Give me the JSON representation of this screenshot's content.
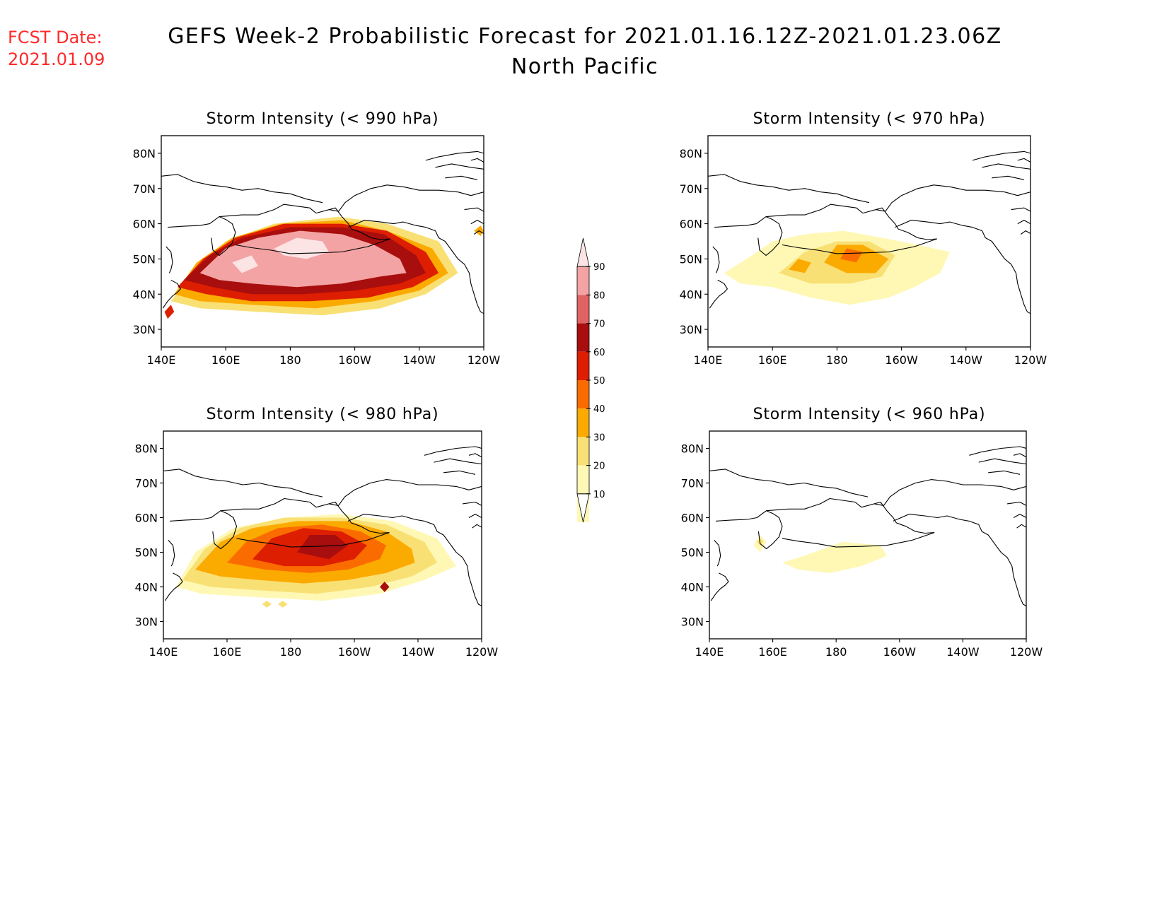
{
  "header": {
    "fcst_label": "FCST Date:",
    "fcst_date": "2021.01.09",
    "title_line1": "GEFS Week-2 Probabilistic Forecast for 2021.01.16.12Z-2021.01.23.06Z",
    "title_line2": "North Pacific"
  },
  "map_axes": {
    "lon_ticks": [
      "140E",
      "160E",
      "180",
      "160W",
      "140W",
      "120W"
    ],
    "lat_ticks": [
      "80N",
      "70N",
      "60N",
      "50N",
      "40N",
      "30N"
    ]
  },
  "colorbar": {
    "labels": [
      "90",
      "80",
      "70",
      "60",
      "50",
      "40",
      "30",
      "20",
      "10"
    ],
    "colors": [
      "#fce4e4",
      "#f3a3a3",
      "#e06363",
      "#a80e0e",
      "#dd1e00",
      "#fb6c00",
      "#fbaa00",
      "#f9e074",
      "#fef8b4"
    ]
  },
  "panels": [
    {
      "id": "p990",
      "title": "Storm Intensity (< 990 hPa)",
      "blobs": [
        {
          "level": 2,
          "pts": [
            [
              143,
              38
            ],
            [
              150,
              47
            ],
            [
              160,
              55
            ],
            [
              175,
              60
            ],
            [
              195,
              62
            ],
            [
              210,
              60
            ],
            [
              226,
              55
            ],
            [
              232,
              46
            ],
            [
              222,
              40
            ],
            [
              208,
              36
            ],
            [
              190,
              34
            ],
            [
              170,
              35
            ],
            [
              152,
              36
            ]
          ]
        },
        {
          "level": 3,
          "pts": [
            [
              144,
              40
            ],
            [
              151,
              49
            ],
            [
              162,
              56
            ],
            [
              177,
              60
            ],
            [
              196,
              61
            ],
            [
              210,
              58
            ],
            [
              224,
              53
            ],
            [
              229,
              46
            ],
            [
              220,
              41
            ],
            [
              206,
              38
            ],
            [
              188,
              36
            ],
            [
              168,
              37
            ],
            [
              152,
              38
            ]
          ]
        },
        {
          "level": 5,
          "pts": [
            [
              145,
              42
            ],
            [
              153,
              50
            ],
            [
              163,
              56
            ],
            [
              178,
              60
            ],
            [
              196,
              60
            ],
            [
              210,
              58
            ],
            [
              222,
              52
            ],
            [
              226,
              46
            ],
            [
              218,
              42
            ],
            [
              204,
              39
            ],
            [
              186,
              38
            ],
            [
              168,
              38
            ],
            [
              154,
              40
            ]
          ]
        },
        {
          "level": 6,
          "pts": [
            [
              147,
              44
            ],
            [
              155,
              51
            ],
            [
              165,
              56
            ],
            [
              180,
              59
            ],
            [
              196,
              59
            ],
            [
              209,
              57
            ],
            [
              219,
              51
            ],
            [
              222,
              46
            ],
            [
              214,
              43
            ],
            [
              200,
              41
            ],
            [
              184,
              40
            ],
            [
              168,
              40
            ],
            [
              156,
              42
            ]
          ]
        },
        {
          "level": 8,
          "pts": [
            [
              152,
              46
            ],
            [
              160,
              53
            ],
            [
              170,
              56
            ],
            [
              183,
              58
            ],
            [
              196,
              57
            ],
            [
              206,
              54
            ],
            [
              214,
              50
            ],
            [
              216,
              46
            ],
            [
              208,
              45
            ],
            [
              196,
              43
            ],
            [
              182,
              42
            ],
            [
              168,
              43
            ],
            [
              158,
              44
            ]
          ]
        },
        {
          "level": 9,
          "pts": [
            [
              175,
              53
            ],
            [
              182,
              56
            ],
            [
              190,
              55
            ],
            [
              192,
              52
            ],
            [
              185,
              50
            ],
            [
              178,
              51
            ]
          ]
        },
        {
          "level": 9,
          "pts": [
            [
              162,
              49
            ],
            [
              168,
              51
            ],
            [
              170,
              48
            ],
            [
              165,
              46
            ]
          ]
        },
        {
          "level": 3,
          "pts": [
            [
              237,
              58
            ],
            [
              239,
              59.5
            ],
            [
              240,
              58
            ],
            [
              239,
              56.5
            ]
          ]
        },
        {
          "level": 5,
          "pts": [
            [
              141,
              35
            ],
            [
              143,
              37
            ],
            [
              144,
              35
            ],
            [
              142,
              33
            ]
          ]
        }
      ]
    },
    {
      "id": "p970",
      "title": "Storm Intensity (< 970 hPa)",
      "blobs": [
        {
          "level": 1,
          "pts": [
            [
              145,
              46
            ],
            [
              152,
              50
            ],
            [
              160,
              55
            ],
            [
              170,
              57
            ],
            [
              182,
              58
            ],
            [
              194,
              56
            ],
            [
              205,
              54
            ],
            [
              215,
              52
            ],
            [
              212,
              46
            ],
            [
              204,
              42
            ],
            [
              196,
              39
            ],
            [
              184,
              37
            ],
            [
              172,
              39
            ],
            [
              160,
              42
            ],
            [
              150,
              43
            ]
          ]
        },
        {
          "level": 2,
          "pts": [
            [
              162,
              46
            ],
            [
              170,
              52
            ],
            [
              180,
              55
            ],
            [
              190,
              55
            ],
            [
              198,
              51
            ],
            [
              194,
              45
            ],
            [
              184,
              43
            ],
            [
              172,
              43
            ]
          ]
        },
        {
          "level": 3,
          "pts": [
            [
              165,
              47
            ],
            [
              168,
              50
            ],
            [
              172,
              49
            ],
            [
              170,
              46
            ]
          ]
        },
        {
          "level": 3,
          "pts": [
            [
              176,
              49
            ],
            [
              180,
              54
            ],
            [
              188,
              54
            ],
            [
              196,
              50
            ],
            [
              192,
              46
            ],
            [
              183,
              46
            ]
          ]
        },
        {
          "level": 4,
          "pts": [
            [
              181,
              50
            ],
            [
              183,
              53
            ],
            [
              188,
              52
            ],
            [
              186,
              49
            ]
          ]
        }
      ]
    },
    {
      "id": "p980",
      "title": "Storm Intensity (< 980 hPa)",
      "blobs": [
        {
          "level": 1,
          "pts": [
            [
              144,
              40
            ],
            [
              150,
              50
            ],
            [
              162,
              57
            ],
            [
              178,
              60
            ],
            [
              196,
              61
            ],
            [
              212,
              59
            ],
            [
              226,
              54
            ],
            [
              232,
              46
            ],
            [
              222,
              42
            ],
            [
              208,
              38
            ],
            [
              190,
              36
            ],
            [
              170,
              37
            ],
            [
              152,
              38
            ]
          ]
        },
        {
          "level": 2,
          "pts": [
            [
              146,
              42
            ],
            [
              153,
              51
            ],
            [
              164,
              57
            ],
            [
              178,
              60
            ],
            [
              196,
              60
            ],
            [
              210,
              58
            ],
            [
              222,
              53
            ],
            [
              226,
              47
            ],
            [
              218,
              43
            ],
            [
              205,
              40
            ],
            [
              188,
              38
            ],
            [
              170,
              39
            ],
            [
              155,
              40
            ]
          ]
        },
        {
          "level": 3,
          "pts": [
            [
              150,
              45
            ],
            [
              158,
              53
            ],
            [
              168,
              57
            ],
            [
              182,
              59
            ],
            [
              198,
              59
            ],
            [
              210,
              56
            ],
            [
              218,
              51
            ],
            [
              219,
              47
            ],
            [
              210,
              44
            ],
            [
              198,
              42
            ],
            [
              184,
              41
            ],
            [
              170,
              42
            ],
            [
              158,
              43
            ]
          ]
        },
        {
          "level": 4,
          "pts": [
            [
              160,
              47
            ],
            [
              166,
              53
            ],
            [
              176,
              57
            ],
            [
              190,
              58
            ],
            [
              202,
              56
            ],
            [
              210,
              52
            ],
            [
              208,
              48
            ],
            [
              198,
              45
            ],
            [
              186,
              44
            ],
            [
              172,
              45
            ]
          ]
        },
        {
          "level": 5,
          "pts": [
            [
              168,
              48
            ],
            [
              174,
              54
            ],
            [
              184,
              57
            ],
            [
              196,
              56
            ],
            [
              204,
              52
            ],
            [
              200,
              48
            ],
            [
              190,
              46
            ],
            [
              178,
              46
            ]
          ]
        },
        {
          "level": 6,
          "pts": [
            [
              182,
              50
            ],
            [
              186,
              55
            ],
            [
              194,
              55
            ],
            [
              198,
              52
            ],
            [
              192,
              48
            ]
          ]
        },
        {
          "level": 6,
          "pts": [
            [
              208,
              40
            ],
            [
              209.5,
              41.5
            ],
            [
              211,
              40
            ],
            [
              209.5,
              38.5
            ]
          ]
        },
        {
          "level": 2,
          "pts": [
            [
              171,
              35
            ],
            [
              172.5,
              36
            ],
            [
              174,
              35
            ],
            [
              172.5,
              34
            ]
          ]
        },
        {
          "level": 2,
          "pts": [
            [
              176,
              35
            ],
            [
              177.5,
              36
            ],
            [
              179,
              35
            ],
            [
              177.5,
              34
            ]
          ]
        }
      ]
    },
    {
      "id": "p960",
      "title": "Storm Intensity (< 960 hPa)",
      "blobs": [
        {
          "level": 1,
          "pts": [
            [
              154,
              52
            ],
            [
              156,
              55
            ],
            [
              158,
              53
            ],
            [
              156,
              50
            ]
          ]
        },
        {
          "level": 1,
          "pts": [
            [
              163,
              47
            ],
            [
              170,
              49
            ],
            [
              176,
              51
            ],
            [
              182,
              53
            ],
            [
              194,
              52
            ],
            [
              196,
              49
            ],
            [
              188,
              46
            ],
            [
              178,
              44
            ],
            [
              168,
              45
            ]
          ]
        },
        {
          "level": 2,
          "pts": [
            [
              155,
              53
            ],
            [
              156,
              54
            ],
            [
              157,
              53
            ],
            [
              156,
              52
            ]
          ]
        }
      ]
    }
  ]
}
